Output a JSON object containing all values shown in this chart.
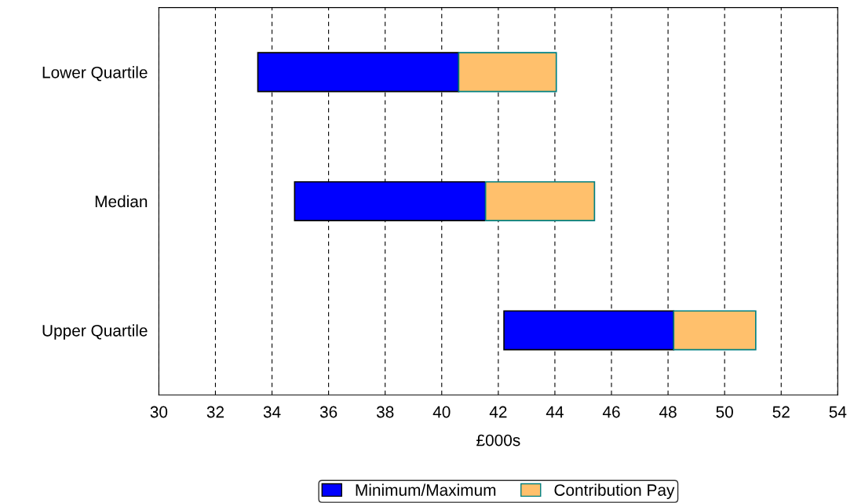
{
  "chart_data": {
    "type": "bar",
    "orientation": "horizontal",
    "xlabel": "£000s",
    "categories": [
      "Lower Quartile",
      "Median",
      "Upper Quartile"
    ],
    "series": [
      {
        "name": "Minimum/Maximum",
        "color": "#0000ff",
        "base": [
          33.5,
          34.8,
          42.2
        ],
        "values": [
          7.1,
          6.75,
          6.0
        ]
      },
      {
        "name": "Contribution Pay",
        "color": "#ffc06c",
        "base": [
          40.6,
          41.55,
          48.2
        ],
        "values": [
          3.45,
          3.85,
          2.9
        ]
      }
    ],
    "xlim": [
      30,
      54
    ],
    "xticks": [
      30,
      32,
      34,
      36,
      38,
      40,
      42,
      44,
      46,
      48,
      50,
      52,
      54
    ],
    "grid": "x",
    "legend": "bottom"
  }
}
